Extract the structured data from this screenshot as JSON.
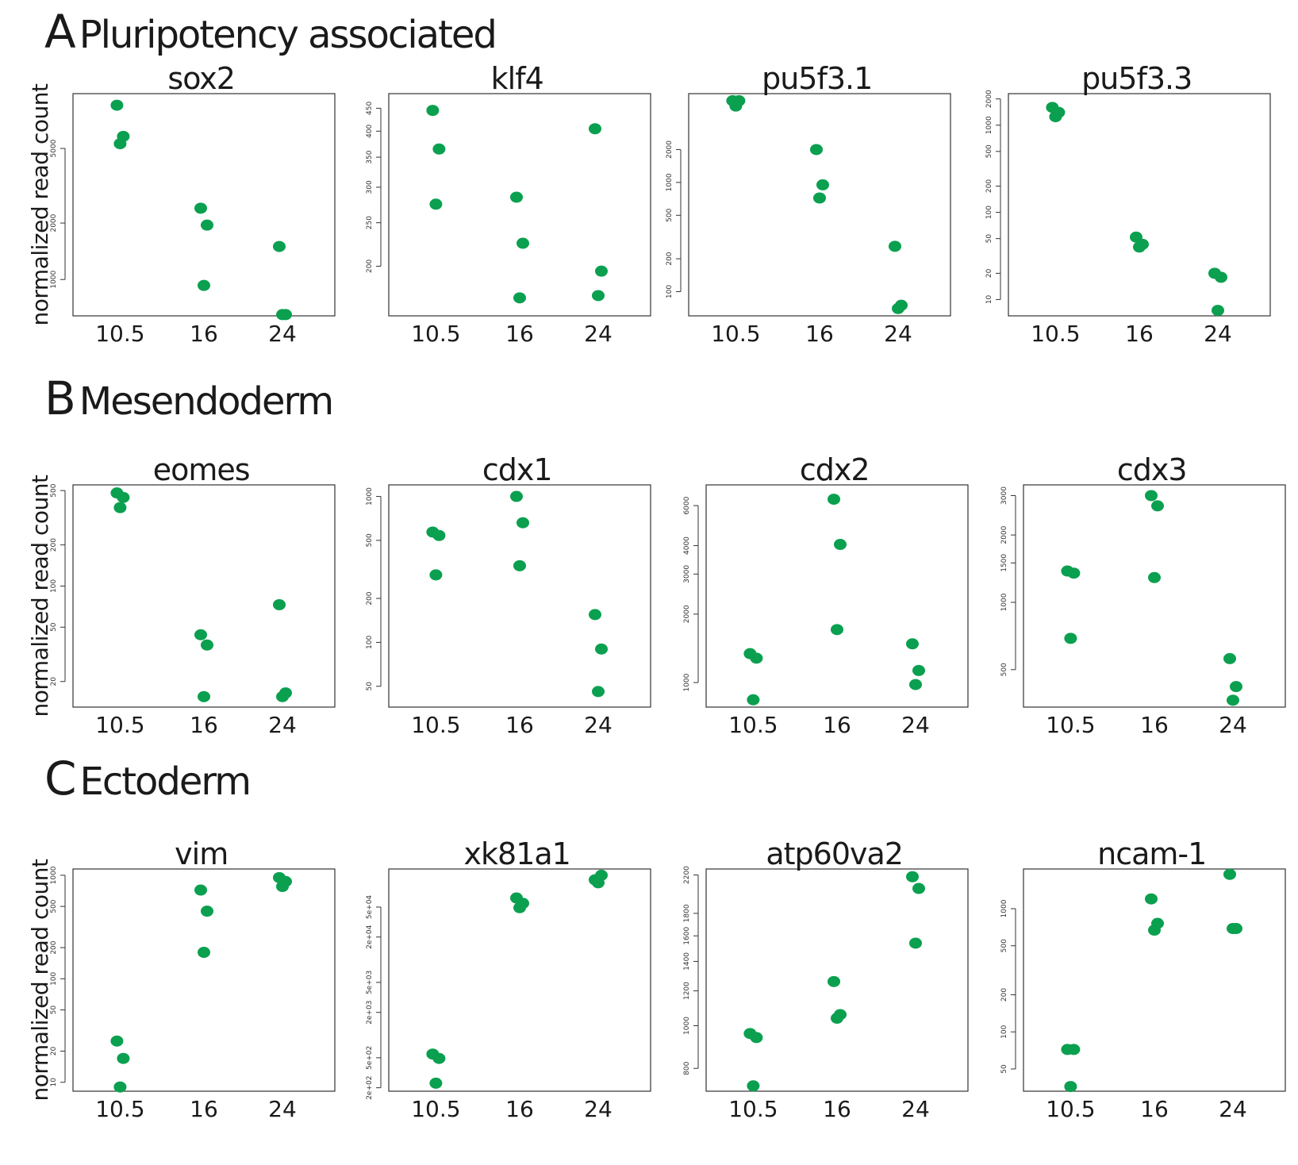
{
  "sections": [
    {
      "letter": "A",
      "title": "Pluripotency associated"
    },
    {
      "letter": "B",
      "title": "Mesendoderm"
    },
    {
      "letter": "C",
      "title": "Ectoderm"
    }
  ],
  "ylabel": "normalized read count",
  "colors": {
    "points": "#0aa04f",
    "axis": "#333333"
  },
  "chart_data": [
    {
      "type": "scatter",
      "title": "sox2",
      "scale": "log",
      "categories": [
        "10.5",
        "16",
        "24"
      ],
      "yticks": [
        1000,
        2000,
        5000
      ],
      "ytick_labels": [
        "1000",
        "2000",
        "5000"
      ],
      "ylim": [
        640,
        9800
      ],
      "points": [
        [
          1,
          8500
        ],
        [
          1,
          5800
        ],
        [
          1,
          5300
        ],
        [
          2,
          2400
        ],
        [
          2,
          1950
        ],
        [
          2,
          930
        ],
        [
          3,
          1500
        ],
        [
          3,
          650
        ],
        [
          3,
          650
        ]
      ]
    },
    {
      "type": "scatter",
      "title": "klf4",
      "scale": "log",
      "categories": [
        "10.5",
        "16",
        "24"
      ],
      "yticks": [
        200,
        250,
        300,
        350,
        400,
        450
      ],
      "ytick_labels": [
        "200",
        "250",
        "300",
        "350",
        "400",
        "450"
      ],
      "ylim": [
        155,
        485
      ],
      "points": [
        [
          1,
          445
        ],
        [
          1,
          365
        ],
        [
          1,
          275
        ],
        [
          2,
          285
        ],
        [
          2,
          225
        ],
        [
          2,
          170
        ],
        [
          3,
          405
        ],
        [
          3,
          195
        ],
        [
          3,
          172
        ]
      ]
    },
    {
      "type": "scatter",
      "title": "pu5f3.1",
      "scale": "log",
      "categories": [
        "10.5",
        "16",
        "24"
      ],
      "yticks": [
        100,
        200,
        500,
        1000,
        2000
      ],
      "ytick_labels": [
        "100",
        "200",
        "500",
        "1000",
        "2000"
      ],
      "ylim": [
        60,
        6500
      ],
      "points": [
        [
          1,
          5600
        ],
        [
          1,
          5600
        ],
        [
          1,
          5000
        ],
        [
          2,
          2000
        ],
        [
          2,
          950
        ],
        [
          2,
          720
        ],
        [
          3,
          260
        ],
        [
          3,
          75
        ],
        [
          3,
          70
        ]
      ]
    },
    {
      "type": "scatter",
      "title": "pu5f3.3",
      "scale": "log",
      "categories": [
        "10.5",
        "16",
        "24"
      ],
      "yticks": [
        10,
        20,
        50,
        100,
        200,
        500,
        1000,
        2000
      ],
      "ytick_labels": [
        "10",
        "20",
        "50",
        "100",
        "200",
        "500",
        "1000",
        "2000"
      ],
      "ylim": [
        6.5,
        2300
      ],
      "points": [
        [
          1,
          1600
        ],
        [
          1,
          1400
        ],
        [
          1,
          1250
        ],
        [
          2,
          52
        ],
        [
          2,
          43
        ],
        [
          2,
          40
        ],
        [
          3,
          20
        ],
        [
          3,
          18
        ],
        [
          3,
          7.5
        ]
      ]
    },
    {
      "type": "scatter",
      "title": "eomes",
      "scale": "log",
      "categories": [
        "10.5",
        "16",
        "24"
      ],
      "yticks": [
        20,
        50,
        100,
        200,
        500
      ],
      "ytick_labels": [
        "20",
        "50",
        "100",
        "200",
        "500"
      ],
      "ylim": [
        13,
        550
      ],
      "points": [
        [
          1,
          480
        ],
        [
          1,
          445
        ],
        [
          1,
          375
        ],
        [
          2,
          44
        ],
        [
          2,
          37
        ],
        [
          2,
          15.5
        ],
        [
          3,
          73
        ],
        [
          3,
          16.5
        ],
        [
          3,
          15.5
        ]
      ]
    },
    {
      "type": "scatter",
      "title": "cdx1",
      "scale": "log",
      "categories": [
        "10.5",
        "16",
        "24"
      ],
      "yticks": [
        50,
        100,
        200,
        500,
        1000
      ],
      "ytick_labels": [
        "50",
        "100",
        "200",
        "500",
        "1000"
      ],
      "ylim": [
        36,
        1200
      ],
      "points": [
        [
          1,
          570
        ],
        [
          1,
          540
        ],
        [
          1,
          290
        ],
        [
          2,
          1000
        ],
        [
          2,
          660
        ],
        [
          2,
          335
        ],
        [
          3,
          155
        ],
        [
          3,
          90
        ],
        [
          3,
          46
        ]
      ]
    },
    {
      "type": "scatter",
      "title": "cdx2",
      "scale": "log",
      "categories": [
        "10.5",
        "16",
        "24"
      ],
      "yticks": [
        1000,
        2000,
        3000,
        4000,
        6000
      ],
      "ytick_labels": [
        "1000",
        "2000",
        "3000",
        "4000",
        "6000"
      ],
      "ylim": [
        780,
        7400
      ],
      "points": [
        [
          1,
          1340
        ],
        [
          1,
          1280
        ],
        [
          1,
          840
        ],
        [
          2,
          6400
        ],
        [
          2,
          4050
        ],
        [
          2,
          1710
        ],
        [
          3,
          1480
        ],
        [
          3,
          1130
        ],
        [
          3,
          980
        ]
      ]
    },
    {
      "type": "scatter",
      "title": "cdx3",
      "scale": "log",
      "categories": [
        "10.5",
        "16",
        "24"
      ],
      "yticks": [
        500,
        1000,
        1500,
        2000,
        3000
      ],
      "ytick_labels": [
        "500",
        "1000",
        "1500",
        "2000",
        "3000"
      ],
      "ylim": [
        340,
        3350
      ],
      "points": [
        [
          1,
          1380
        ],
        [
          1,
          1350
        ],
        [
          1,
          690
        ],
        [
          2,
          3000
        ],
        [
          2,
          2700
        ],
        [
          2,
          1290
        ],
        [
          3,
          560
        ],
        [
          3,
          420
        ],
        [
          3,
          365
        ]
      ]
    },
    {
      "type": "scatter",
      "title": "vim",
      "scale": "log",
      "categories": [
        "10.5",
        "16",
        "24"
      ],
      "yticks": [
        10,
        20,
        50,
        100,
        200,
        500,
        1000
      ],
      "ytick_labels": [
        "10",
        "20",
        "50",
        "100",
        "200",
        "500",
        "1000"
      ],
      "ylim": [
        8.2,
        1150
      ],
      "points": [
        [
          1,
          25
        ],
        [
          1,
          17
        ],
        [
          1,
          9
        ],
        [
          2,
          720
        ],
        [
          2,
          450
        ],
        [
          2,
          180
        ],
        [
          3,
          950
        ],
        [
          3,
          870
        ],
        [
          3,
          780
        ]
      ]
    },
    {
      "type": "scatter",
      "title": "xk81a1",
      "scale": "log",
      "categories": [
        "10.5",
        "16",
        "24"
      ],
      "yticks": [
        200,
        500,
        2000,
        5000,
        20000,
        50000
      ],
      "ytick_labels": [
        "2e+02",
        "5e+02",
        "2e+03",
        "5e+03",
        "2e+04",
        "5e+04"
      ],
      "ylim": [
        180,
        160000
      ],
      "points": [
        [
          1,
          560
        ],
        [
          1,
          490
        ],
        [
          1,
          230
        ],
        [
          2,
          66000
        ],
        [
          2,
          56000
        ],
        [
          2,
          49000
        ],
        [
          3,
          115000
        ],
        [
          3,
          132000
        ],
        [
          3,
          105000
        ]
      ]
    },
    {
      "type": "scatter",
      "title": "atp60va2",
      "scale": "log",
      "categories": [
        "10.5",
        "16",
        "24"
      ],
      "yticks": [
        800,
        1000,
        1200,
        1400,
        1600,
        1800,
        2200
      ],
      "ytick_labels": [
        "800",
        "1000",
        "1200",
        "1400",
        "1600",
        "1800",
        "2200"
      ],
      "ylim": [
        710,
        2270
      ],
      "points": [
        [
          1,
          960
        ],
        [
          1,
          940
        ],
        [
          1,
          730
        ],
        [
          2,
          1260
        ],
        [
          2,
          1060
        ],
        [
          2,
          1040
        ],
        [
          3,
          2180
        ],
        [
          3,
          2050
        ],
        [
          3,
          1540
        ]
      ]
    },
    {
      "type": "scatter",
      "title": "ncam-1",
      "scale": "log",
      "categories": [
        "10.5",
        "16",
        "24"
      ],
      "yticks": [
        50,
        100,
        200,
        500,
        1000
      ],
      "ytick_labels": [
        "50",
        "100",
        "200",
        "500",
        "1000"
      ],
      "ylim": [
        33,
        2100
      ],
      "points": [
        [
          1,
          72
        ],
        [
          1,
          72
        ],
        [
          1,
          36
        ],
        [
          2,
          1200
        ],
        [
          2,
          760
        ],
        [
          2,
          670
        ],
        [
          3,
          1900
        ],
        [
          3,
          690
        ],
        [
          3,
          690
        ]
      ]
    }
  ]
}
